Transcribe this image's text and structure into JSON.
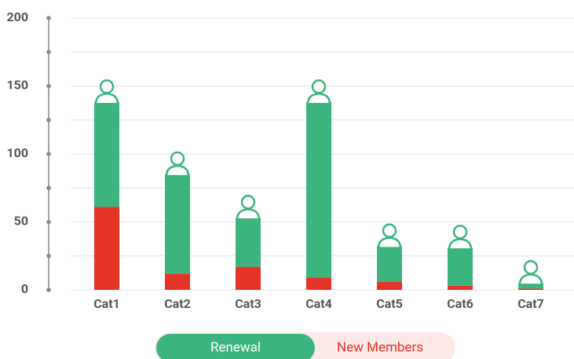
{
  "chart_data": {
    "type": "stacked_bar",
    "categories": [
      "Cat1",
      "Cat2",
      "Cat3",
      "Cat4",
      "Cat5",
      "Cat6",
      "Cat7"
    ],
    "series": [
      {
        "name": "New Members",
        "color": "#e53327",
        "values": [
          61,
          12,
          17,
          9,
          6,
          3,
          1
        ]
      },
      {
        "name": "Renewal",
        "color": "#3bb57d",
        "values": [
          77,
          73,
          36,
          129,
          26,
          28,
          4
        ]
      }
    ],
    "legend_order": [
      1,
      0
    ],
    "ylim": [
      0,
      200
    ],
    "yticks": [
      0,
      50,
      100,
      150,
      200
    ],
    "minor_yticks": [
      25,
      75,
      125,
      175
    ],
    "grid": true
  }
}
